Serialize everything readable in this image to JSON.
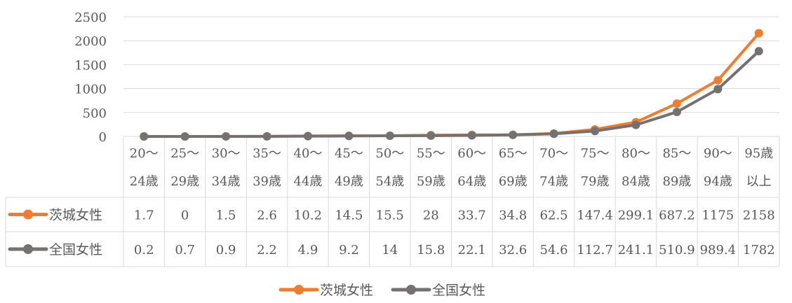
{
  "chart_data": {
    "type": "line",
    "title": "",
    "xlabel": "",
    "ylabel": "",
    "ylim": [
      0,
      2500
    ],
    "y_ticks": [
      0,
      500,
      1000,
      1500,
      2000,
      2500
    ],
    "grid": true,
    "legend_position": "bottom",
    "categories": [
      [
        "20～",
        "24歳"
      ],
      [
        "25～",
        "29歳"
      ],
      [
        "30～",
        "34歳"
      ],
      [
        "35～",
        "39歳"
      ],
      [
        "40～",
        "44歳"
      ],
      [
        "45～",
        "49歳"
      ],
      [
        "50～",
        "54歳"
      ],
      [
        "55～",
        "59歳"
      ],
      [
        "60～",
        "64歳"
      ],
      [
        "65～",
        "69歳"
      ],
      [
        "70～",
        "74歳"
      ],
      [
        "75～",
        "79歳"
      ],
      [
        "80～",
        "84歳"
      ],
      [
        "85～",
        "89歳"
      ],
      [
        "90～",
        "94歳"
      ],
      [
        "95歳",
        "以上"
      ]
    ],
    "series": [
      {
        "name": "茨城女性",
        "color": "#ED7D31",
        "values": [
          1.7,
          0,
          1.5,
          2.6,
          10.2,
          14.5,
          15.5,
          28,
          33.7,
          34.8,
          62.5,
          147.4,
          299.1,
          687.2,
          1175,
          2158
        ]
      },
      {
        "name": "全国女性",
        "color": "#767171",
        "values": [
          0.2,
          0.7,
          0.9,
          2.2,
          4.9,
          9.2,
          14,
          15.8,
          22.1,
          32.6,
          54.6,
          112.7,
          241.1,
          510.9,
          989.4,
          1782
        ]
      }
    ],
    "data_table": {
      "茨城女性": [
        "1.7",
        "0",
        "1.5",
        "2.6",
        "10.2",
        "14.5",
        "15.5",
        "28",
        "33.7",
        "34.8",
        "62.5",
        "147.4",
        "299.1",
        "687.2",
        "1175",
        "2158"
      ],
      "全国女性": [
        "0.2",
        "0.7",
        "0.9",
        "2.2",
        "4.9",
        "9.2",
        "14",
        "15.8",
        "22.1",
        "32.6",
        "54.6",
        "112.7",
        "241.1",
        "510.9",
        "989.4",
        "1782"
      ]
    }
  }
}
